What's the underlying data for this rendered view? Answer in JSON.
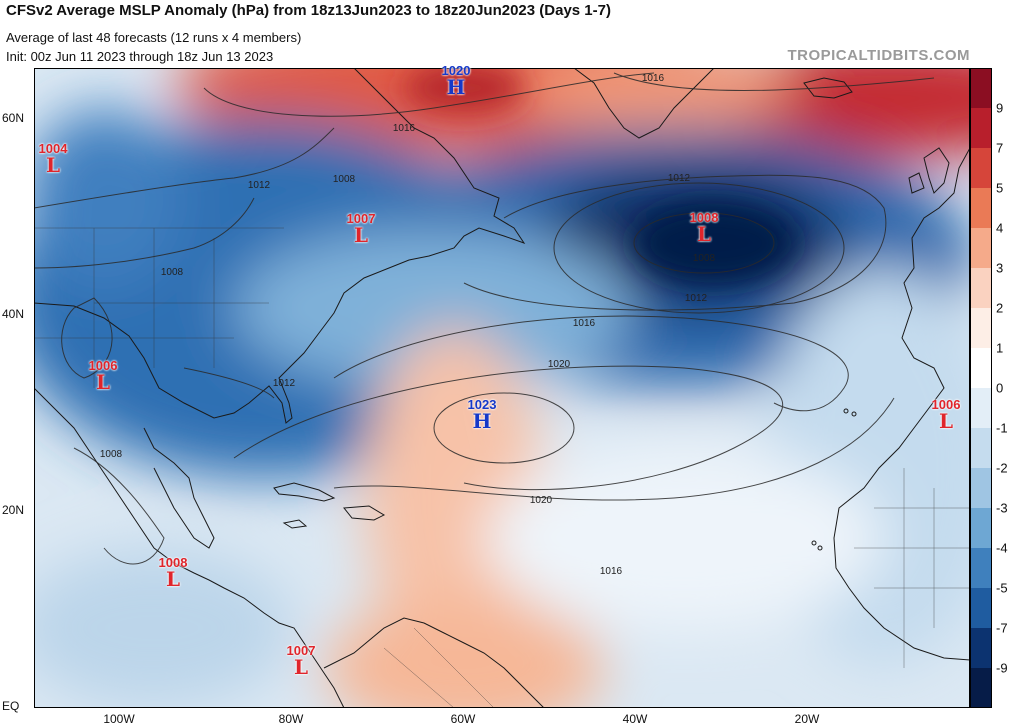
{
  "header": {
    "title": "CFSv2 Average MSLP Anomaly (hPa) from 18z13Jun2023 to 18z20Jun2023 (Days 1-7)",
    "subtitle": "Average of last 48 forecasts (12 runs x 4 members)",
    "init": "Init: 00z Jun 11 2023 through 18z Jun 13 2023",
    "brand": "TROPICALTIDBITS.COM"
  },
  "axes": {
    "lat_labels": [
      "60N",
      "40N",
      "20N",
      "EQ"
    ],
    "lon_labels": [
      "100W",
      "80W",
      "60W",
      "40W",
      "20W"
    ]
  },
  "colorbar": {
    "labels": [
      "9",
      "7",
      "5",
      "4",
      "3",
      "2",
      "1",
      "0",
      "-1",
      "-2",
      "-3",
      "-4",
      "-5",
      "-7",
      "-9"
    ],
    "colors": [
      "#8b0e22",
      "#b81f2c",
      "#d6453a",
      "#ea7a56",
      "#f5aa8a",
      "#fad2c0",
      "#fdeee6",
      "#ffffff",
      "#e3eef7",
      "#c5dcee",
      "#9fc5e3",
      "#6ea7d3",
      "#3f80bd",
      "#1f5ca0",
      "#0c3370",
      "#061c48"
    ]
  },
  "isobars": {
    "labels": [
      "1016",
      "1016",
      "1012",
      "1008",
      "1008",
      "1008",
      "1012",
      "1012",
      "1016",
      "1020",
      "1020",
      "1016",
      "1012",
      "1008"
    ]
  },
  "pressure_systems": [
    {
      "type": "H",
      "value": "1020"
    },
    {
      "type": "L",
      "value": "1004"
    },
    {
      "type": "L",
      "value": "1007"
    },
    {
      "type": "L",
      "value": "1008"
    },
    {
      "type": "L",
      "value": "1006"
    },
    {
      "type": "H",
      "value": "1023"
    },
    {
      "type": "L",
      "value": "1006"
    },
    {
      "type": "L",
      "value": "1008"
    },
    {
      "type": "L",
      "value": "1007"
    }
  ]
}
